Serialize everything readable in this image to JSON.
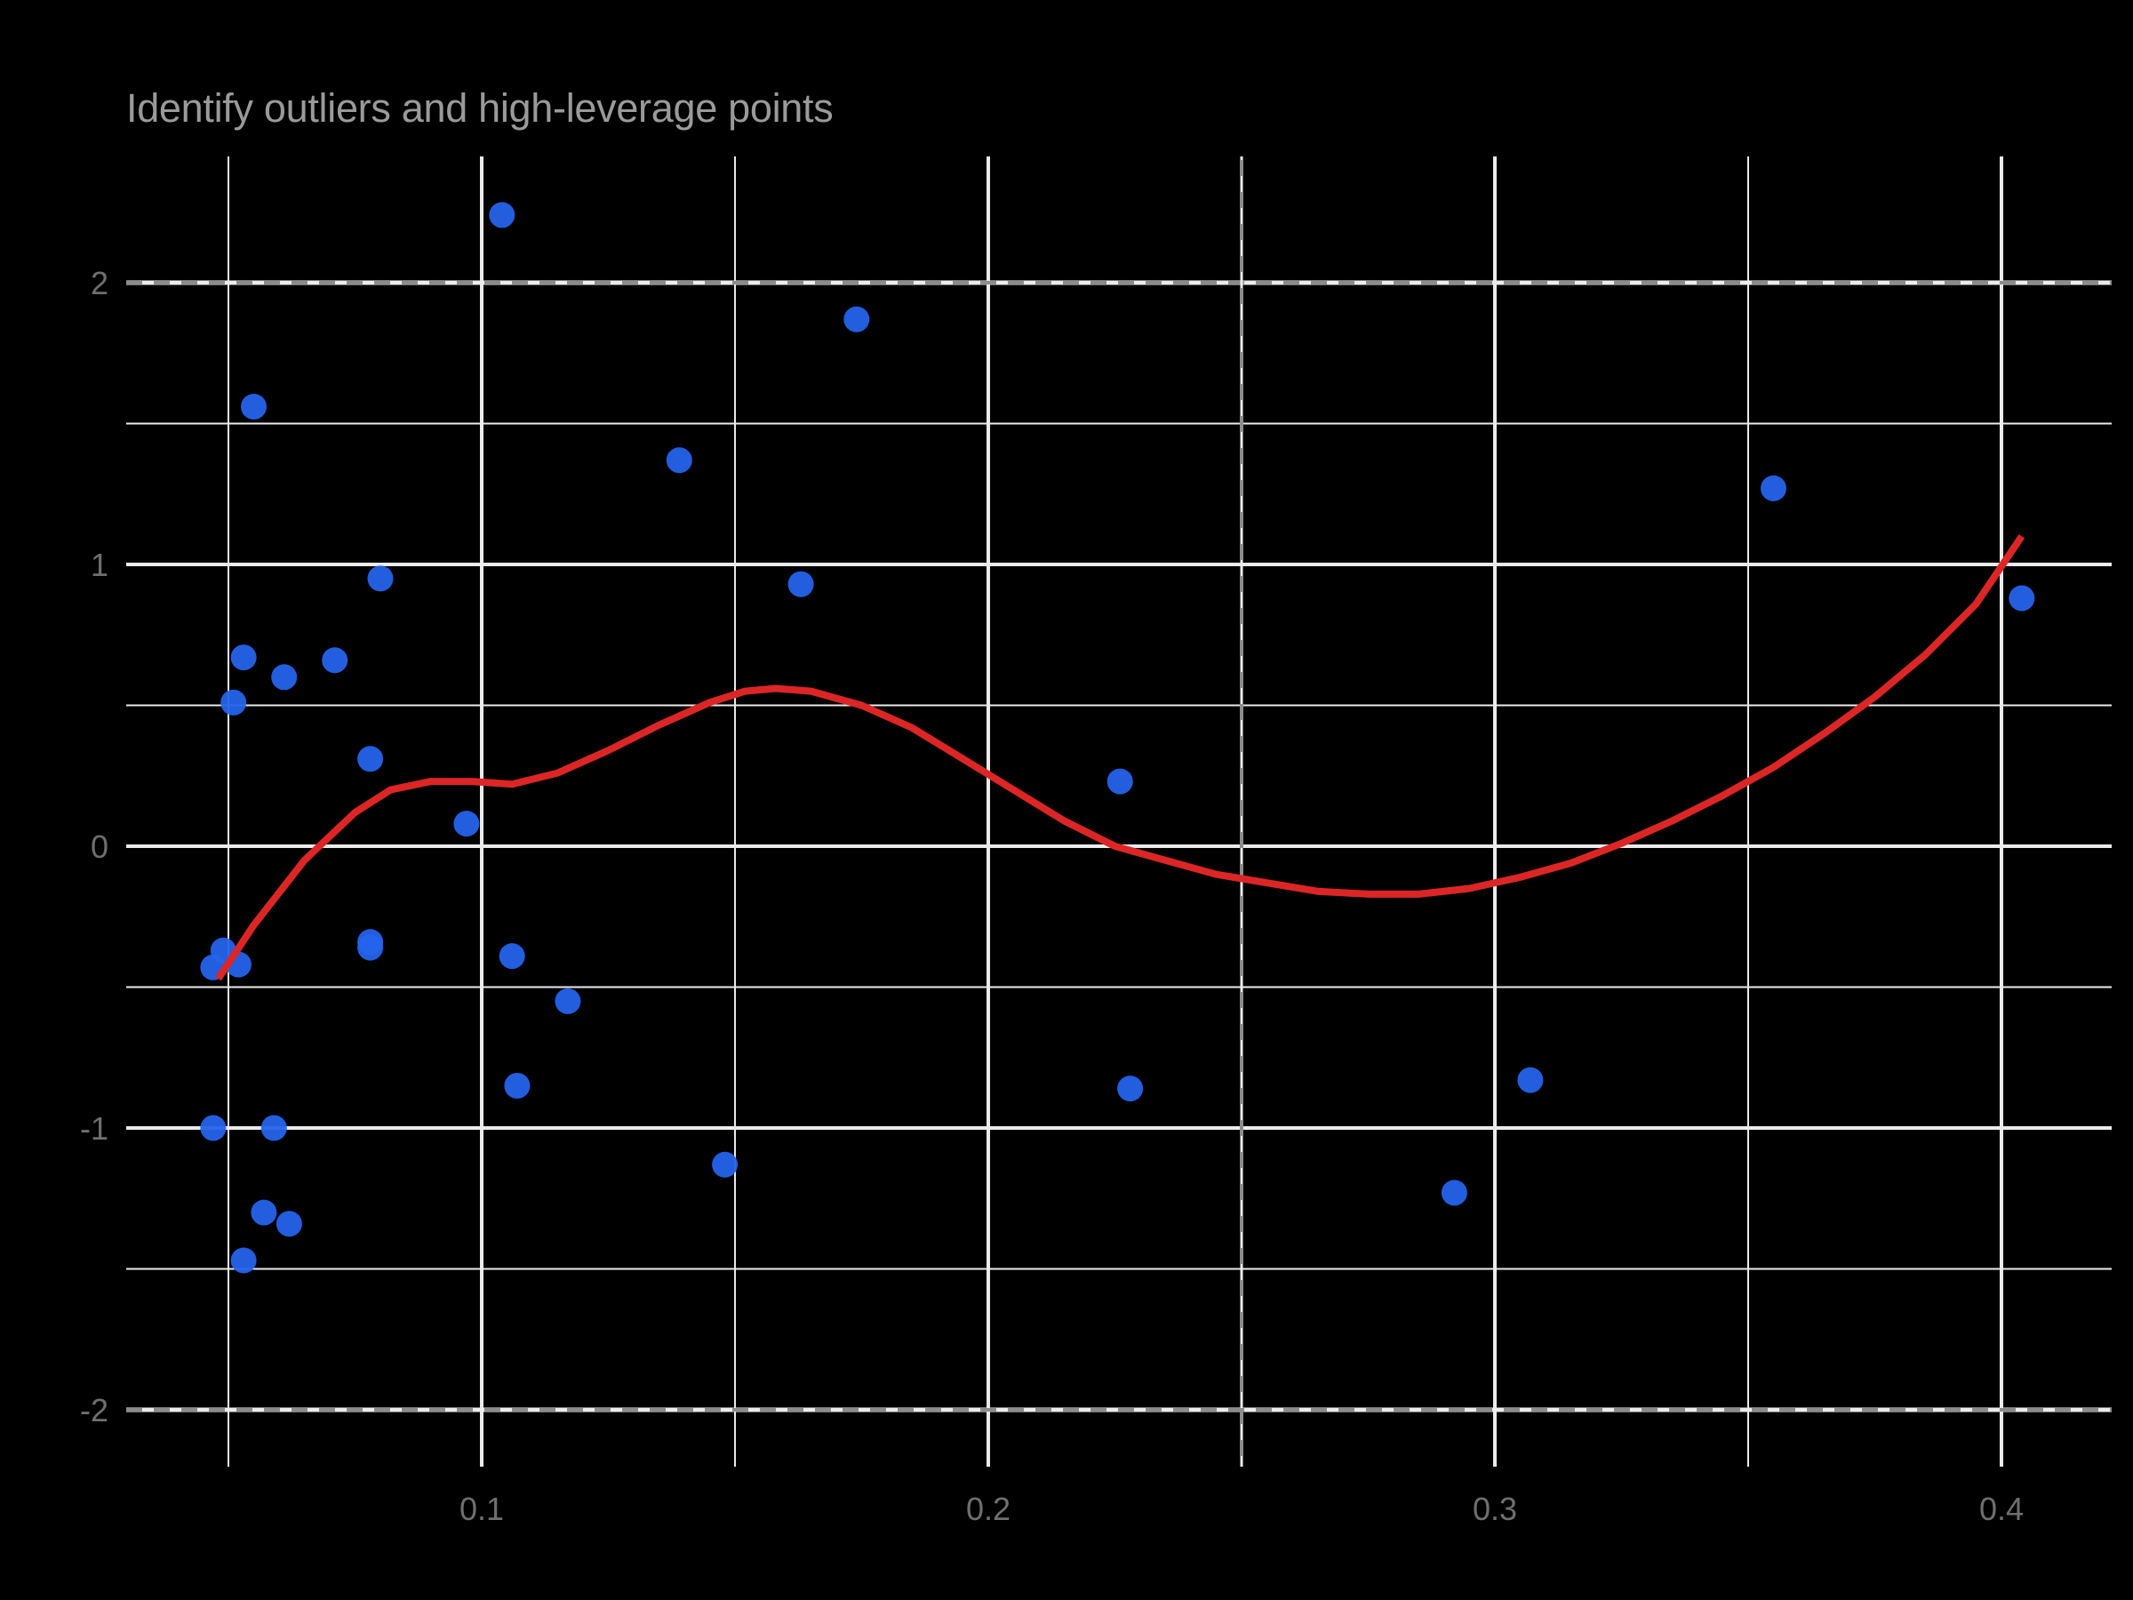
{
  "chart_data": {
    "type": "scatter",
    "title": "Identify outliers and high-leverage points",
    "xlabel": "",
    "ylabel": "",
    "xlim": [
      0.03,
      0.42
    ],
    "ylim": [
      -2.25,
      2.35
    ],
    "x_ticks": [
      0.1,
      0.2,
      0.3,
      0.4
    ],
    "x_tick_labels": [
      "0.1",
      "0.2",
      "0.3",
      "0.4"
    ],
    "x_minor_grid": [
      0.05,
      0.15,
      0.25,
      0.35
    ],
    "y_ticks": [
      -2,
      -1,
      0,
      1,
      2
    ],
    "y_tick_labels": [
      "-2",
      "-1",
      "0",
      "1",
      "2"
    ],
    "y_minor_grid": [
      -1.5,
      -0.5,
      0.5,
      1.5
    ],
    "grid": true,
    "legend": "none",
    "reference_lines": [
      {
        "orientation": "horizontal",
        "value": 2,
        "style": "dashed",
        "color": "#8c8c8c"
      },
      {
        "orientation": "horizontal",
        "value": -2,
        "style": "dashed",
        "color": "#8c8c8c"
      },
      {
        "orientation": "vertical",
        "value": 0.25,
        "style": "dashed",
        "color": "#8c8c8c"
      }
    ],
    "series": [
      {
        "name": "points",
        "type": "scatter",
        "color": "#2563eb",
        "x": [
          0.104,
          0.174,
          0.055,
          0.139,
          0.355,
          0.08,
          0.163,
          0.404,
          0.053,
          0.071,
          0.061,
          0.051,
          0.078,
          0.226,
          0.097,
          0.078,
          0.078,
          0.049,
          0.047,
          0.052,
          0.106,
          0.117,
          0.107,
          0.228,
          0.307,
          0.047,
          0.059,
          0.148,
          0.292,
          0.057,
          0.062,
          0.053
        ],
        "y": [
          2.24,
          1.87,
          1.56,
          1.37,
          1.27,
          0.95,
          0.93,
          0.88,
          0.67,
          0.66,
          0.6,
          0.51,
          0.31,
          0.23,
          0.08,
          -0.34,
          -0.36,
          -0.37,
          -0.43,
          -0.42,
          -0.39,
          -0.55,
          -0.85,
          -0.86,
          -0.83,
          -1.0,
          -1.0,
          -1.13,
          -1.23,
          -1.3,
          -1.34,
          -1.47
        ]
      },
      {
        "name": "smooth",
        "type": "line",
        "color": "#dc2626",
        "x": [
          0.048,
          0.055,
          0.065,
          0.075,
          0.082,
          0.09,
          0.098,
          0.106,
          0.115,
          0.125,
          0.135,
          0.145,
          0.152,
          0.158,
          0.165,
          0.175,
          0.185,
          0.195,
          0.205,
          0.215,
          0.225,
          0.235,
          0.245,
          0.255,
          0.265,
          0.275,
          0.285,
          0.295,
          0.305,
          0.315,
          0.325,
          0.335,
          0.345,
          0.355,
          0.365,
          0.375,
          0.385,
          0.395,
          0.404
        ],
        "y": [
          -0.47,
          -0.28,
          -0.05,
          0.12,
          0.2,
          0.23,
          0.23,
          0.22,
          0.26,
          0.34,
          0.43,
          0.51,
          0.55,
          0.56,
          0.55,
          0.5,
          0.42,
          0.31,
          0.2,
          0.09,
          0.0,
          -0.05,
          -0.1,
          -0.13,
          -0.16,
          -0.17,
          -0.17,
          -0.15,
          -0.11,
          -0.06,
          0.01,
          0.09,
          0.18,
          0.28,
          0.4,
          0.53,
          0.68,
          0.86,
          1.1
        ]
      }
    ],
    "point_labels_note": "point labels rendered in black, not legible"
  }
}
